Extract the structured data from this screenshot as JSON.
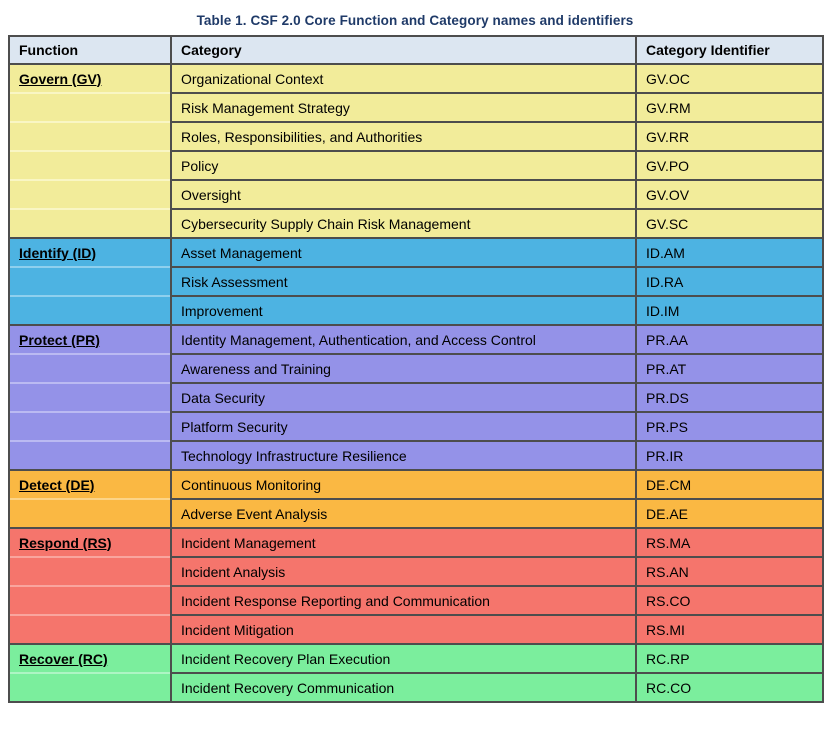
{
  "title": "Table 1. CSF 2.0 Core Function and Category names and identifiers",
  "header": {
    "function": "Function",
    "category": "Category",
    "identifier": "Category Identifier"
  },
  "functions": [
    {
      "name": "Govern (GV)",
      "bg": "#f2ec9a",
      "divider": "#f9f6c4",
      "categories": [
        {
          "name": "Organizational Context",
          "id": "GV.OC"
        },
        {
          "name": "Risk Management Strategy",
          "id": "GV.RM"
        },
        {
          "name": "Roles, Responsibilities, and Authorities",
          "id": "GV.RR"
        },
        {
          "name": "Policy",
          "id": "GV.PO"
        },
        {
          "name": "Oversight",
          "id": "GV.OV"
        },
        {
          "name": "Cybersecurity Supply Chain Risk Management",
          "id": "GV.SC"
        }
      ]
    },
    {
      "name": "Identify (ID)",
      "bg": "#4db3e2",
      "divider": "#8fd0ee",
      "categories": [
        {
          "name": "Asset Management",
          "id": "ID.AM"
        },
        {
          "name": "Risk Assessment",
          "id": "ID.RA"
        },
        {
          "name": "Improvement",
          "id": "ID.IM"
        }
      ]
    },
    {
      "name": "Protect (PR)",
      "bg": "#9492e8",
      "divider": "#bbbaf2",
      "categories": [
        {
          "name": "Identity Management, Authentication, and Access Control",
          "id": "PR.AA"
        },
        {
          "name": "Awareness and Training",
          "id": "PR.AT"
        },
        {
          "name": "Data Security",
          "id": "PR.DS"
        },
        {
          "name": "Platform Security",
          "id": "PR.PS"
        },
        {
          "name": "Technology Infrastructure Resilience",
          "id": "PR.IR"
        }
      ]
    },
    {
      "name": "Detect (DE)",
      "bg": "#fab843",
      "divider": "#fcd488",
      "categories": [
        {
          "name": "Continuous Monitoring",
          "id": "DE.CM"
        },
        {
          "name": "Adverse Event Analysis",
          "id": "DE.AE"
        }
      ]
    },
    {
      "name": "Respond (RS)",
      "bg": "#f5756c",
      "divider": "#f9a59e",
      "categories": [
        {
          "name": "Incident Management",
          "id": "RS.MA"
        },
        {
          "name": "Incident Analysis",
          "id": "RS.AN"
        },
        {
          "name": "Incident Response Reporting and Communication",
          "id": "RS.CO"
        },
        {
          "name": "Incident Mitigation",
          "id": "RS.MI"
        }
      ]
    },
    {
      "name": "Recover (RC)",
      "bg": "#7bee9d",
      "divider": "#adf5c4",
      "categories": [
        {
          "name": "Incident Recovery Plan Execution",
          "id": "RC.RP"
        },
        {
          "name": "Incident Recovery Communication",
          "id": "RC.CO"
        }
      ]
    }
  ],
  "colors": {
    "title": "#1f3a68",
    "header_bg": "#dce6f1",
    "border": "#4d4d4d"
  }
}
